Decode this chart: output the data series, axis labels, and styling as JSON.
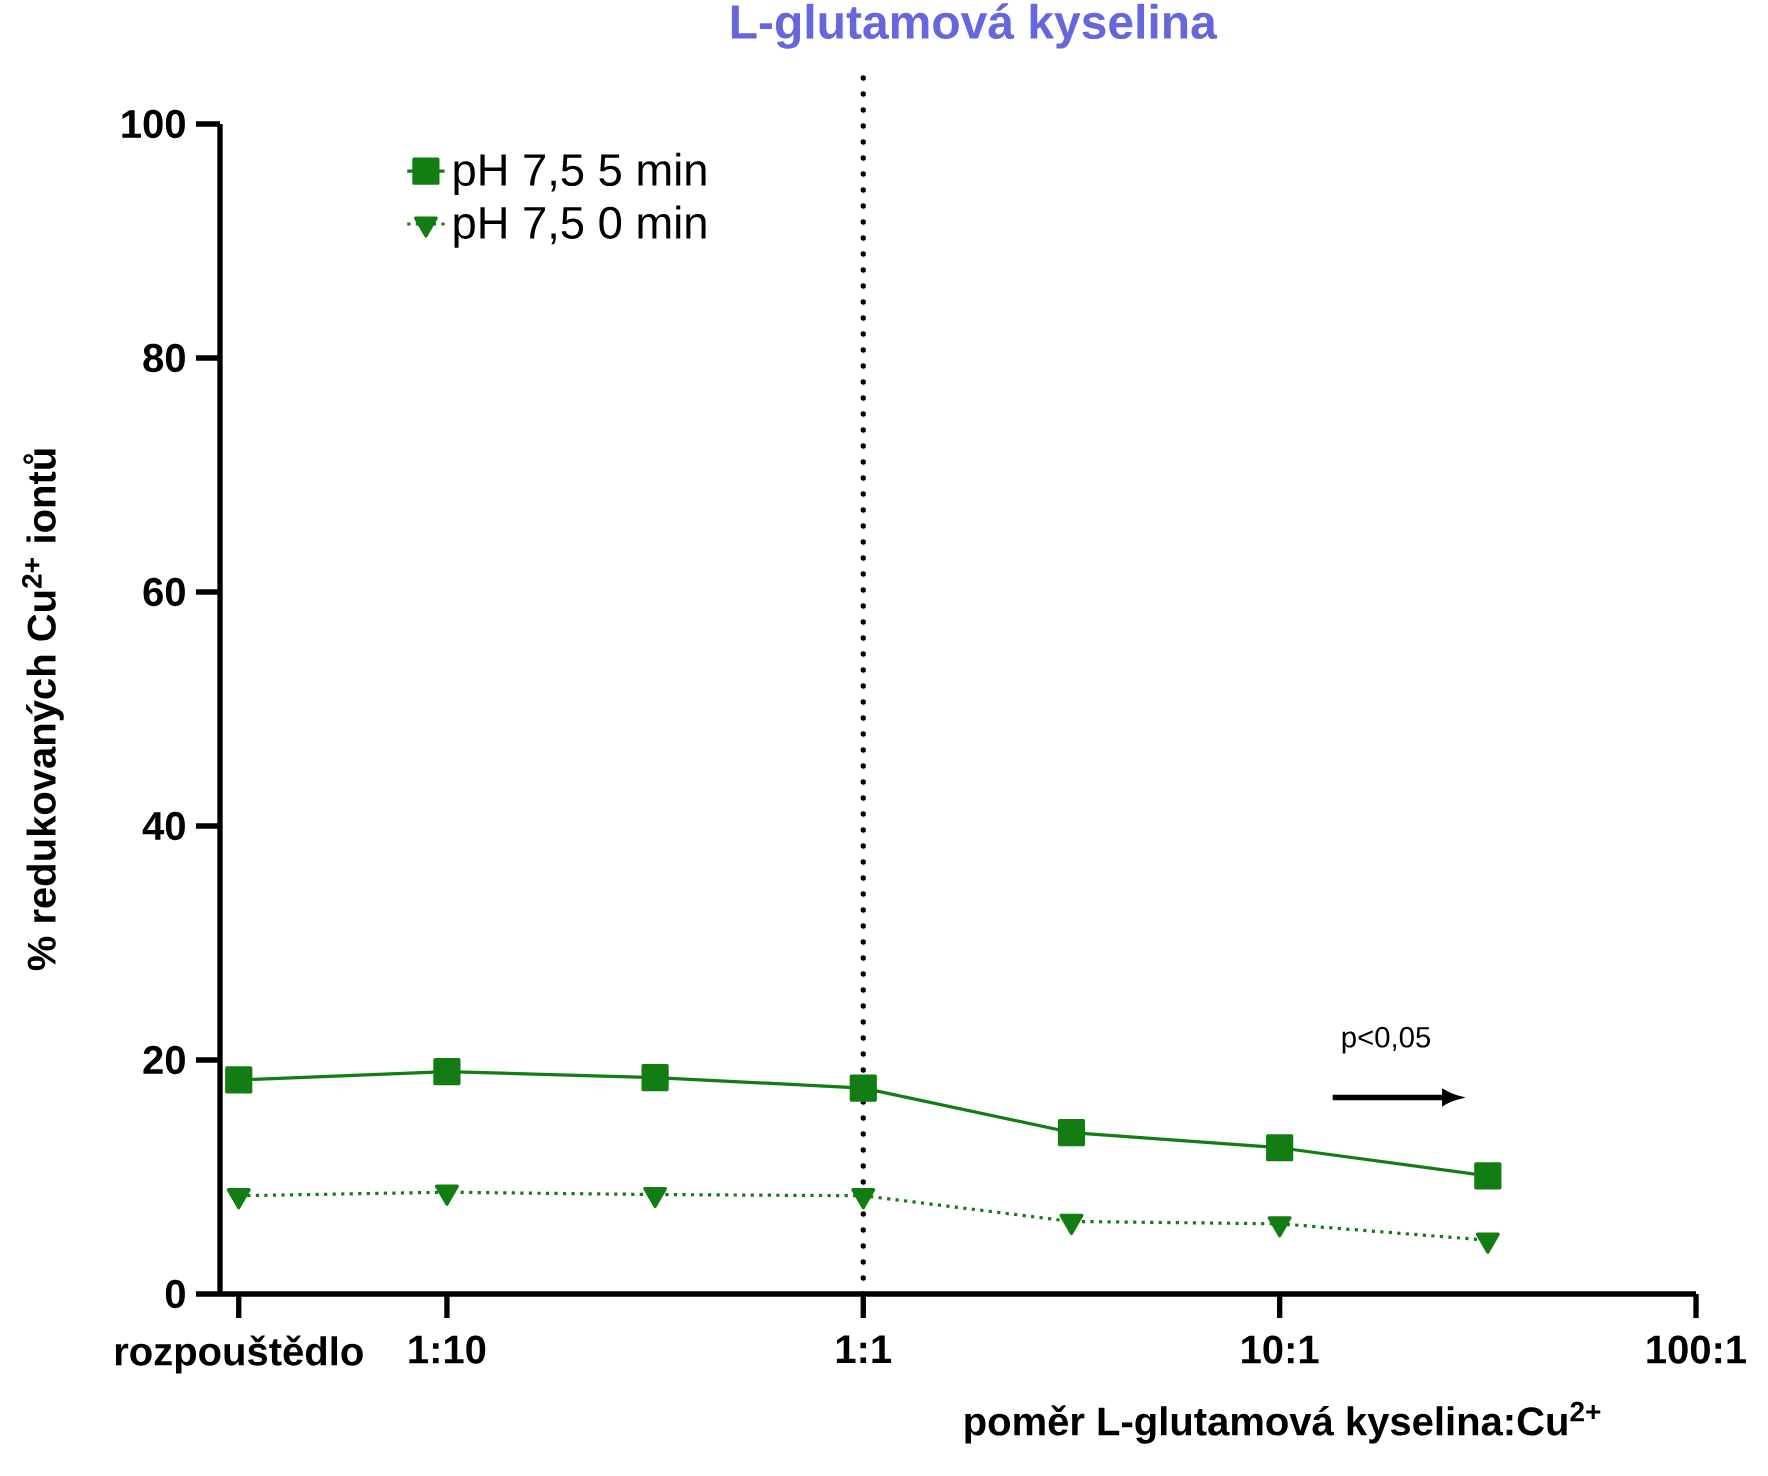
{
  "chart_data": {
    "type": "line",
    "title": "L-glutamová kyselina",
    "xlabel": "poměr L-glutamová kyselina:Cu$^{2+}$",
    "ylabel": "% redukovaných Cu$^{2+}$ iontů",
    "categories": [
      "rozpouštědlo",
      "1:10",
      null,
      "1:1",
      null,
      "10:1",
      null,
      "100:1"
    ],
    "series": [
      {
        "name": "pH 7,5 5 min",
        "color": "#137d13",
        "values": [
          18.3,
          19.0,
          18.5,
          17.6,
          13.8,
          12.5,
          10.1,
          null
        ],
        "marker": "square",
        "line_style": "solid"
      },
      {
        "name": "pH 7,5 0 min",
        "color": "#137d13",
        "values": [
          8.4,
          8.7,
          8.5,
          8.4,
          6.2,
          6.0,
          4.6,
          null
        ],
        "marker": "triangle",
        "line_style": "dotted"
      }
    ],
    "ylim": [
      0,
      100
    ],
    "yticks": [
      0,
      20,
      40,
      60,
      80,
      100
    ],
    "legend": "top left",
    "ref_lines": [
      {
        "axis": "x",
        "value": "1:1",
        "line_style": "dotted",
        "color": "#000000"
      }
    ],
    "annotations": [
      "p<0,05"
    ]
  }
}
